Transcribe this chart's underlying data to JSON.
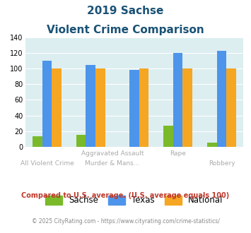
{
  "title_line1": "2019 Sachse",
  "title_line2": "Violent Crime Comparison",
  "sachse": [
    13,
    15,
    0,
    27,
    5
  ],
  "texas": [
    110,
    105,
    98,
    120,
    123
  ],
  "national": [
    100,
    100,
    100,
    100,
    100
  ],
  "sachse_color": "#7aba2a",
  "texas_color": "#4d94eb",
  "national_color": "#f5a623",
  "bg_color": "#dceef0",
  "ylim": [
    0,
    140
  ],
  "yticks": [
    0,
    20,
    40,
    60,
    80,
    100,
    120,
    140
  ],
  "legend_labels": [
    "Sachse",
    "Texas",
    "National"
  ],
  "footnote1": "Compared to U.S. average. (U.S. average equals 100)",
  "footnote2": "© 2025 CityRating.com - https://www.cityrating.com/crime-statistics/",
  "title_color": "#1a5276",
  "footnote1_color": "#c0392b",
  "footnote2_color": "#888888",
  "label_color": "#aaaaaa",
  "n_groups": 5,
  "bar_width": 0.22,
  "x_positions": [
    0,
    1,
    2,
    3,
    4
  ]
}
